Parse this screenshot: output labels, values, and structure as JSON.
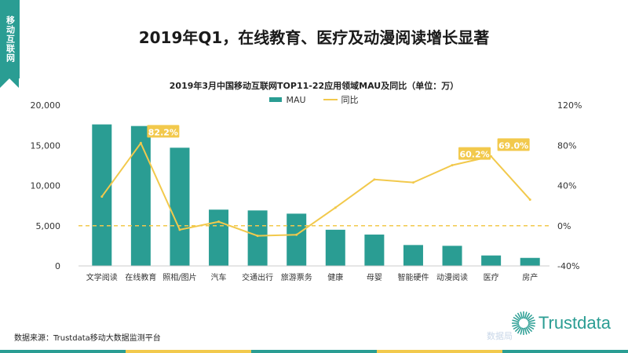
{
  "side_tab": {
    "label": "移动互联网"
  },
  "page_title": "2019年Q1，在线教育、医疗及动漫阅读增长显著",
  "chart_data": {
    "type": "bar+line",
    "title": "2019年3月中国移动互联网TOP11-22应用领域MAU及同比（单位：万）",
    "categories": [
      "文学阅读",
      "在线教育",
      "照相/图片",
      "汽车",
      "交通出行",
      "旅游票务",
      "健康",
      "母婴",
      "智能硬件",
      "动漫阅读",
      "医疗",
      "房产"
    ],
    "series": [
      {
        "name": "MAU",
        "type": "bar",
        "axis": "left",
        "color": "#2a9d93",
        "values": [
          17600,
          17400,
          14700,
          7000,
          6900,
          6500,
          4500,
          3900,
          2600,
          2500,
          1300,
          1000
        ]
      },
      {
        "name": "同比",
        "type": "line",
        "axis": "right",
        "color": "#f2c94c",
        "values": [
          29,
          82.2,
          -4,
          4,
          -10,
          -9,
          18,
          46,
          43,
          60.2,
          69.0,
          26
        ]
      }
    ],
    "y_left": {
      "min": 0,
      "max": 20000,
      "ticks": [
        "0",
        "5,000",
        "10,000",
        "15,000",
        "20,000"
      ]
    },
    "y_right": {
      "min": -40,
      "max": 120,
      "ticks": [
        "-40%",
        "0%",
        "40%",
        "80%",
        "120%"
      ]
    },
    "data_labels": [
      {
        "index": 1,
        "text": "82.2%"
      },
      {
        "index": 9,
        "text": "60.2%"
      },
      {
        "index": 10,
        "text": "69.0%"
      }
    ],
    "reference_line": {
      "axis": "right",
      "value": 0,
      "style": "dashed",
      "color": "#f2c94c"
    },
    "legend": {
      "position": "top"
    }
  },
  "footer": {
    "source": "数据来源：Trustdata移动大数据监测平台"
  },
  "brand": {
    "name": "Trustdata"
  },
  "watermark": "数据局",
  "colors": {
    "accent": "#2a9d93",
    "line": "#f2c94c",
    "label_bg": "#f2c94c"
  },
  "bottom_stripe_colors": [
    "#2a9d93",
    "#f2c94c",
    "#2a9d93",
    "#f2c94c",
    "#2a9d93"
  ]
}
